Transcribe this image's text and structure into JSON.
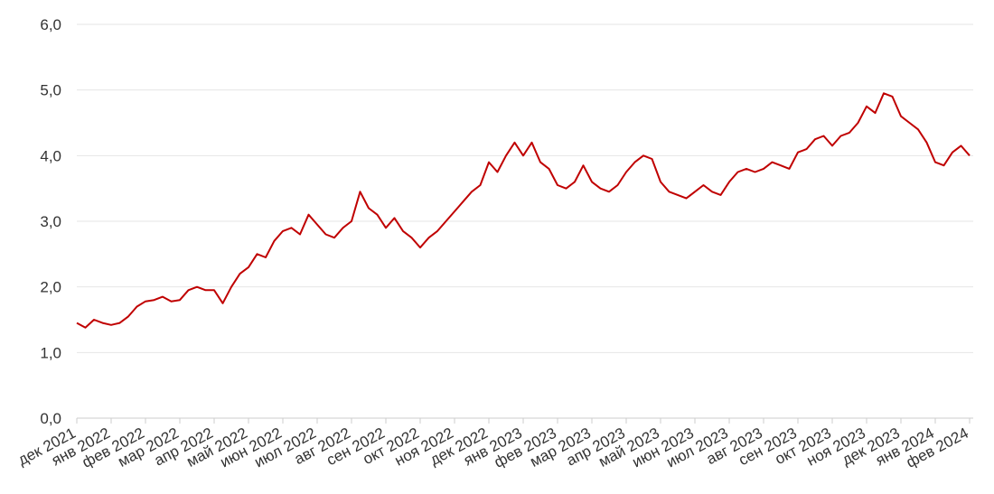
{
  "chart_data": {
    "type": "line",
    "categories": [
      "дек 2021",
      null,
      null,
      null,
      "янв 2022",
      null,
      null,
      null,
      "фев 2022",
      null,
      null,
      null,
      "мар 2022",
      null,
      null,
      null,
      "апр 2022",
      null,
      null,
      null,
      "май 2022",
      null,
      null,
      null,
      "июн 2022",
      null,
      null,
      null,
      "июл 2022",
      null,
      null,
      null,
      "авг 2022",
      null,
      null,
      null,
      "сен 2022",
      null,
      null,
      null,
      "окт 2022",
      null,
      null,
      null,
      "ноя 2022",
      null,
      null,
      null,
      "дек 2022",
      null,
      null,
      null,
      "янв 2023",
      null,
      null,
      null,
      "фев 2023",
      null,
      null,
      null,
      "мар 2023",
      null,
      null,
      null,
      "апр 2023",
      null,
      null,
      null,
      "май 2023",
      null,
      null,
      null,
      "июн 2023",
      null,
      null,
      null,
      "июл 2023",
      null,
      null,
      null,
      "авг 2023",
      null,
      null,
      null,
      "сен 2023",
      null,
      null,
      null,
      "окт 2023",
      null,
      null,
      null,
      "ноя 2023",
      null,
      null,
      null,
      "дек 2023",
      null,
      null,
      null,
      "янв 2024",
      null,
      null,
      null,
      "фев 2024"
    ],
    "series": [
      {
        "color": "#c00000",
        "values": [
          1.45,
          1.38,
          1.5,
          1.45,
          1.42,
          1.45,
          1.55,
          1.7,
          1.78,
          1.8,
          1.85,
          1.78,
          1.8,
          1.95,
          2.0,
          1.95,
          1.95,
          1.75,
          2.0,
          2.2,
          2.3,
          2.5,
          2.45,
          2.7,
          2.85,
          2.9,
          2.8,
          3.1,
          2.95,
          2.8,
          2.75,
          2.9,
          3.0,
          3.45,
          3.2,
          3.1,
          2.9,
          3.05,
          2.85,
          2.75,
          2.6,
          2.75,
          2.85,
          3.0,
          3.15,
          3.3,
          3.45,
          3.55,
          3.9,
          3.75,
          4.0,
          4.2,
          4.0,
          4.2,
          3.9,
          3.8,
          3.55,
          3.5,
          3.6,
          3.85,
          3.6,
          3.5,
          3.45,
          3.55,
          3.75,
          3.9,
          4.0,
          3.95,
          3.6,
          3.45,
          3.4,
          3.35,
          3.45,
          3.55,
          3.45,
          3.4,
          3.6,
          3.75,
          3.8,
          3.75,
          3.8,
          3.9,
          3.85,
          3.8,
          4.05,
          4.1,
          4.25,
          4.3,
          4.15,
          4.3,
          4.35,
          4.5,
          4.75,
          4.65,
          4.95,
          4.9,
          4.6,
          4.5,
          4.4,
          4.2,
          3.9,
          3.85,
          4.05,
          4.15,
          4.0
        ]
      }
    ],
    "ylim": [
      0,
      6
    ],
    "yticks": [
      {
        "value": 0,
        "label": "0,0"
      },
      {
        "value": 1,
        "label": "1,0"
      },
      {
        "value": 2,
        "label": "2,0"
      },
      {
        "value": 3,
        "label": "3,0"
      },
      {
        "value": 4,
        "label": "4,0"
      },
      {
        "value": 5,
        "label": "5,0"
      },
      {
        "value": 6,
        "label": "6,0"
      }
    ],
    "grid": true
  }
}
